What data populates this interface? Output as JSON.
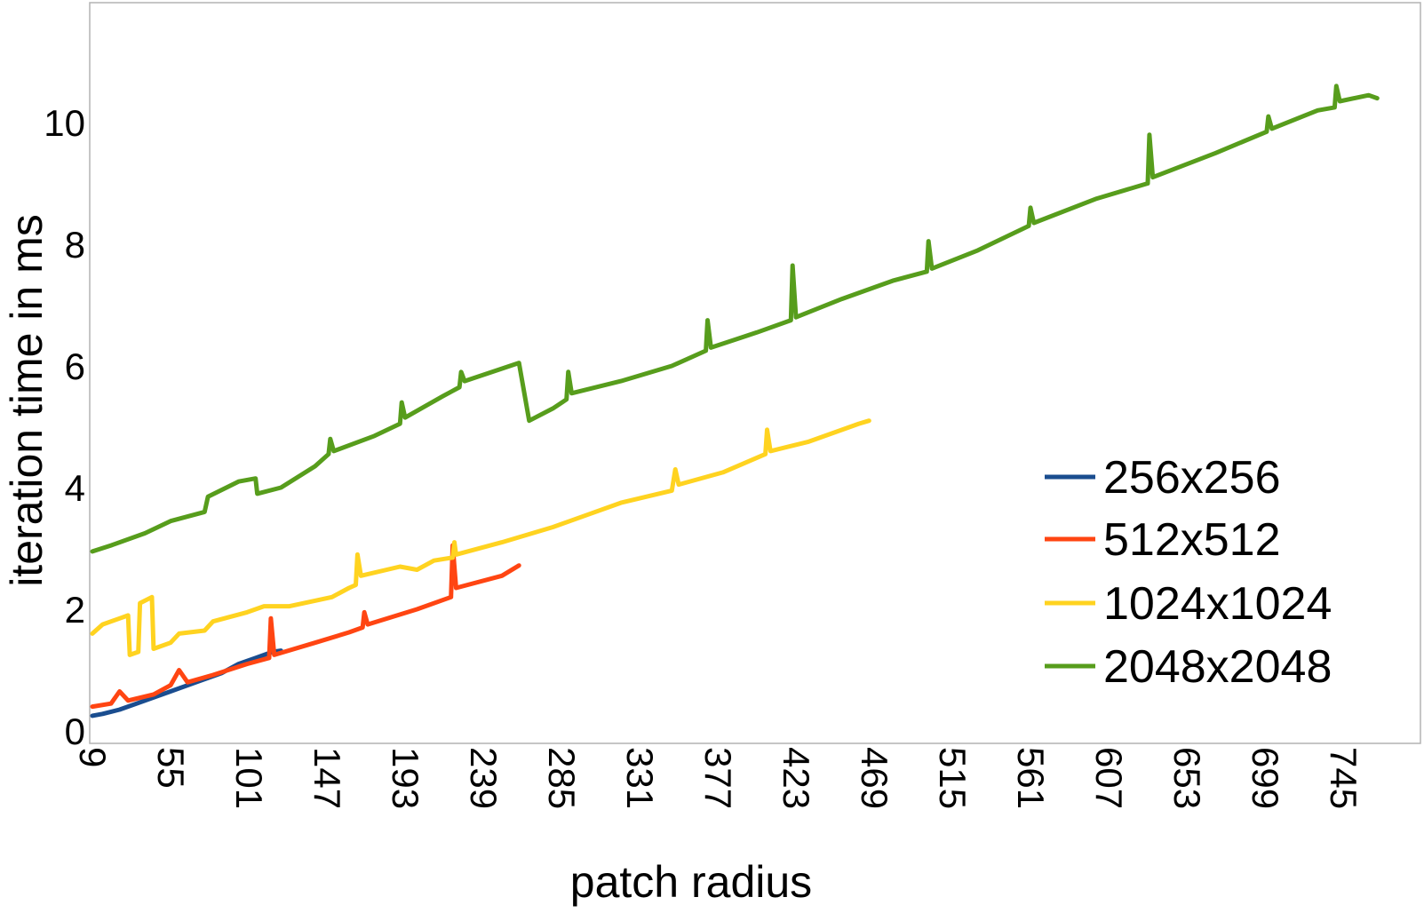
{
  "chart_data": {
    "type": "line",
    "title": "",
    "xlabel": "patch radius",
    "ylabel": "iteration time in ms",
    "xlim": [
      9,
      770
    ],
    "ylim": [
      0,
      12
    ],
    "y_ticks": [
      0,
      2,
      4,
      6,
      8,
      10
    ],
    "y_tick_labels": [
      "0",
      "2",
      "4",
      "6",
      "8",
      "10"
    ],
    "x_ticks": [
      9,
      55,
      101,
      147,
      193,
      239,
      285,
      331,
      377,
      423,
      469,
      515,
      561,
      607,
      653,
      699,
      745
    ],
    "x_tick_labels": [
      "9",
      "55",
      "101",
      "147",
      "193",
      "239",
      "285",
      "331",
      "377",
      "423",
      "469",
      "515",
      "561",
      "607",
      "653",
      "699",
      "745"
    ],
    "grid": false,
    "legend_position": "right",
    "series": [
      {
        "name": "256x256",
        "color": "#1a4d8f",
        "points": [
          [
            9,
            0.25
          ],
          [
            15,
            0.28
          ],
          [
            25,
            0.35
          ],
          [
            40,
            0.5
          ],
          [
            55,
            0.65
          ],
          [
            70,
            0.8
          ],
          [
            85,
            0.95
          ],
          [
            95,
            1.1
          ],
          [
            105,
            1.2
          ],
          [
            115,
            1.3
          ],
          [
            120,
            1.32
          ]
        ]
      },
      {
        "name": "512x512",
        "color": "#ff4512",
        "points": [
          [
            9,
            0.4
          ],
          [
            20,
            0.45
          ],
          [
            25,
            0.65
          ],
          [
            30,
            0.5
          ],
          [
            45,
            0.6
          ],
          [
            55,
            0.75
          ],
          [
            60,
            1.0
          ],
          [
            65,
            0.8
          ],
          [
            80,
            0.92
          ],
          [
            100,
            1.1
          ],
          [
            113,
            1.2
          ],
          [
            114,
            1.85
          ],
          [
            116,
            1.25
          ],
          [
            140,
            1.45
          ],
          [
            160,
            1.62
          ],
          [
            168,
            1.7
          ],
          [
            169,
            1.95
          ],
          [
            171,
            1.75
          ],
          [
            200,
            2.0
          ],
          [
            220,
            2.2
          ],
          [
            221,
            3.05
          ],
          [
            223,
            2.35
          ],
          [
            250,
            2.55
          ],
          [
            260,
            2.72
          ]
        ]
      },
      {
        "name": "1024x1024",
        "color": "#ffd320",
        "points": [
          [
            9,
            1.6
          ],
          [
            15,
            1.75
          ],
          [
            25,
            1.85
          ],
          [
            30,
            1.9
          ],
          [
            31,
            1.25
          ],
          [
            36,
            1.3
          ],
          [
            37,
            2.1
          ],
          [
            44,
            2.2
          ],
          [
            45,
            1.35
          ],
          [
            55,
            1.45
          ],
          [
            60,
            1.6
          ],
          [
            75,
            1.65
          ],
          [
            80,
            1.8
          ],
          [
            100,
            1.95
          ],
          [
            110,
            2.05
          ],
          [
            125,
            2.05
          ],
          [
            150,
            2.2
          ],
          [
            160,
            2.35
          ],
          [
            164,
            2.4
          ],
          [
            165,
            2.9
          ],
          [
            167,
            2.55
          ],
          [
            190,
            2.7
          ],
          [
            200,
            2.65
          ],
          [
            210,
            2.8
          ],
          [
            221,
            2.85
          ],
          [
            222,
            3.1
          ],
          [
            223,
            2.9
          ],
          [
            250,
            3.1
          ],
          [
            280,
            3.35
          ],
          [
            300,
            3.55
          ],
          [
            320,
            3.75
          ],
          [
            350,
            3.95
          ],
          [
            352,
            4.3
          ],
          [
            354,
            4.05
          ],
          [
            380,
            4.25
          ],
          [
            405,
            4.55
          ],
          [
            406,
            4.95
          ],
          [
            408,
            4.6
          ],
          [
            430,
            4.75
          ],
          [
            460,
            5.05
          ],
          [
            466,
            5.1
          ]
        ]
      },
      {
        "name": "2048x2048",
        "color": "#579d1c",
        "points": [
          [
            9,
            2.95
          ],
          [
            20,
            3.05
          ],
          [
            40,
            3.25
          ],
          [
            55,
            3.45
          ],
          [
            75,
            3.6
          ],
          [
            77,
            3.85
          ],
          [
            95,
            4.1
          ],
          [
            105,
            4.15
          ],
          [
            106,
            3.9
          ],
          [
            120,
            4.0
          ],
          [
            140,
            4.35
          ],
          [
            148,
            4.55
          ],
          [
            149,
            4.8
          ],
          [
            151,
            4.6
          ],
          [
            175,
            4.85
          ],
          [
            190,
            5.05
          ],
          [
            191,
            5.4
          ],
          [
            193,
            5.15
          ],
          [
            215,
            5.5
          ],
          [
            225,
            5.65
          ],
          [
            226,
            5.9
          ],
          [
            228,
            5.75
          ],
          [
            260,
            6.05
          ],
          [
            266,
            5.1
          ],
          [
            280,
            5.3
          ],
          [
            288,
            5.45
          ],
          [
            289,
            5.9
          ],
          [
            291,
            5.55
          ],
          [
            320,
            5.75
          ],
          [
            350,
            6.0
          ],
          [
            370,
            6.25
          ],
          [
            371,
            6.75
          ],
          [
            373,
            6.3
          ],
          [
            400,
            6.55
          ],
          [
            420,
            6.75
          ],
          [
            421,
            7.65
          ],
          [
            423,
            6.8
          ],
          [
            450,
            7.1
          ],
          [
            480,
            7.4
          ],
          [
            500,
            7.55
          ],
          [
            501,
            8.05
          ],
          [
            503,
            7.6
          ],
          [
            530,
            7.9
          ],
          [
            560,
            8.3
          ],
          [
            561,
            8.6
          ],
          [
            563,
            8.35
          ],
          [
            600,
            8.75
          ],
          [
            630,
            9.0
          ],
          [
            631,
            9.8
          ],
          [
            633,
            9.1
          ],
          [
            670,
            9.5
          ],
          [
            700,
            9.85
          ],
          [
            701,
            10.1
          ],
          [
            703,
            9.9
          ],
          [
            730,
            10.2
          ],
          [
            740,
            10.25
          ],
          [
            741,
            10.6
          ],
          [
            743,
            10.35
          ],
          [
            760,
            10.45
          ],
          [
            765,
            10.4
          ]
        ]
      }
    ]
  }
}
